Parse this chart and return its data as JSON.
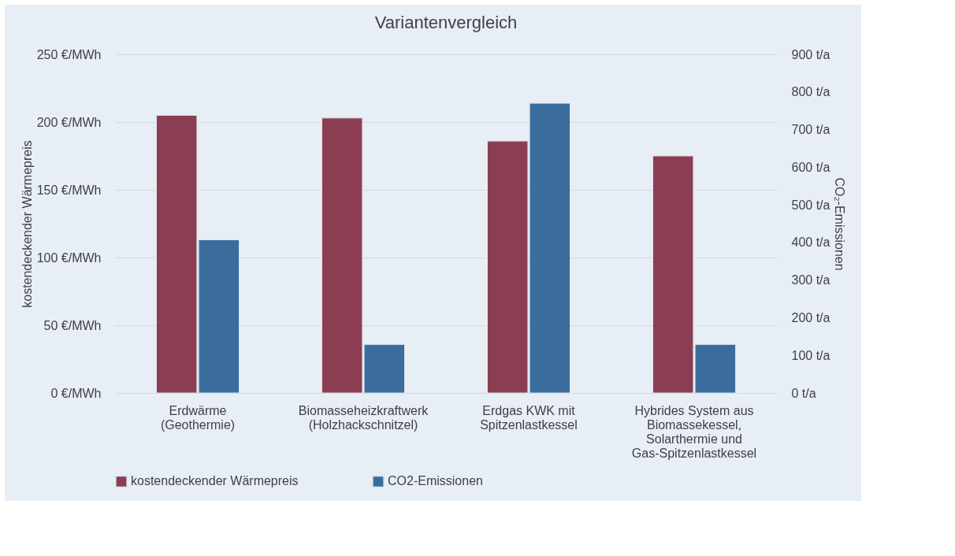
{
  "chart_data": {
    "type": "bar",
    "title": "Variantenvergleich",
    "categories": [
      "Erdwärme (Geothermie)",
      "Biomasseheizkraftwerk (Holzhackschnitzel)",
      "Erdgas KWK mit Spitzenlastkessel",
      "Hybrides System aus Biomassekessel, Solarthermie und Gas-Spitzenlastkessel"
    ],
    "series": [
      {
        "name": "kostendeckender Wärmepreis",
        "color": "#8b3e52",
        "values": [
          205,
          203,
          186,
          175
        ]
      },
      {
        "name": "CO2-Emissionen",
        "color": "#3a6d9e",
        "axis": "y2",
        "values": [
          407,
          129,
          770,
          129
        ]
      }
    ],
    "ylabel": "kostendeckender Wärmepreis",
    "y2label": "CO₂-Emissionen",
    "ylim": [
      0,
      250
    ],
    "yticks": [
      {
        "value": 0,
        "label": "0 €/MWh"
      },
      {
        "value": 50,
        "label": "50 €/MWh"
      },
      {
        "value": 100,
        "label": "100 €/MWh"
      },
      {
        "value": 150,
        "label": "150 €/MWh"
      },
      {
        "value": 200,
        "label": "200 €/MWh"
      },
      {
        "value": 250,
        "label": "250 €/MWh"
      }
    ],
    "y2lim": [
      0,
      900
    ],
    "y2ticks": [
      {
        "value": 0,
        "label": "0 t/a"
      },
      {
        "value": 100,
        "label": "100 t/a"
      },
      {
        "value": 200,
        "label": "200 t/a"
      },
      {
        "value": 300,
        "label": "300 t/a"
      },
      {
        "value": 400,
        "label": "400 t/a"
      },
      {
        "value": 500,
        "label": "500 t/a"
      },
      {
        "value": 600,
        "label": "600 t/a"
      },
      {
        "value": 700,
        "label": "700 t/a"
      },
      {
        "value": 800,
        "label": "800 t/a"
      },
      {
        "value": 900,
        "label": "900 t/a"
      }
    ],
    "grid": "y",
    "legend": "bottom"
  }
}
